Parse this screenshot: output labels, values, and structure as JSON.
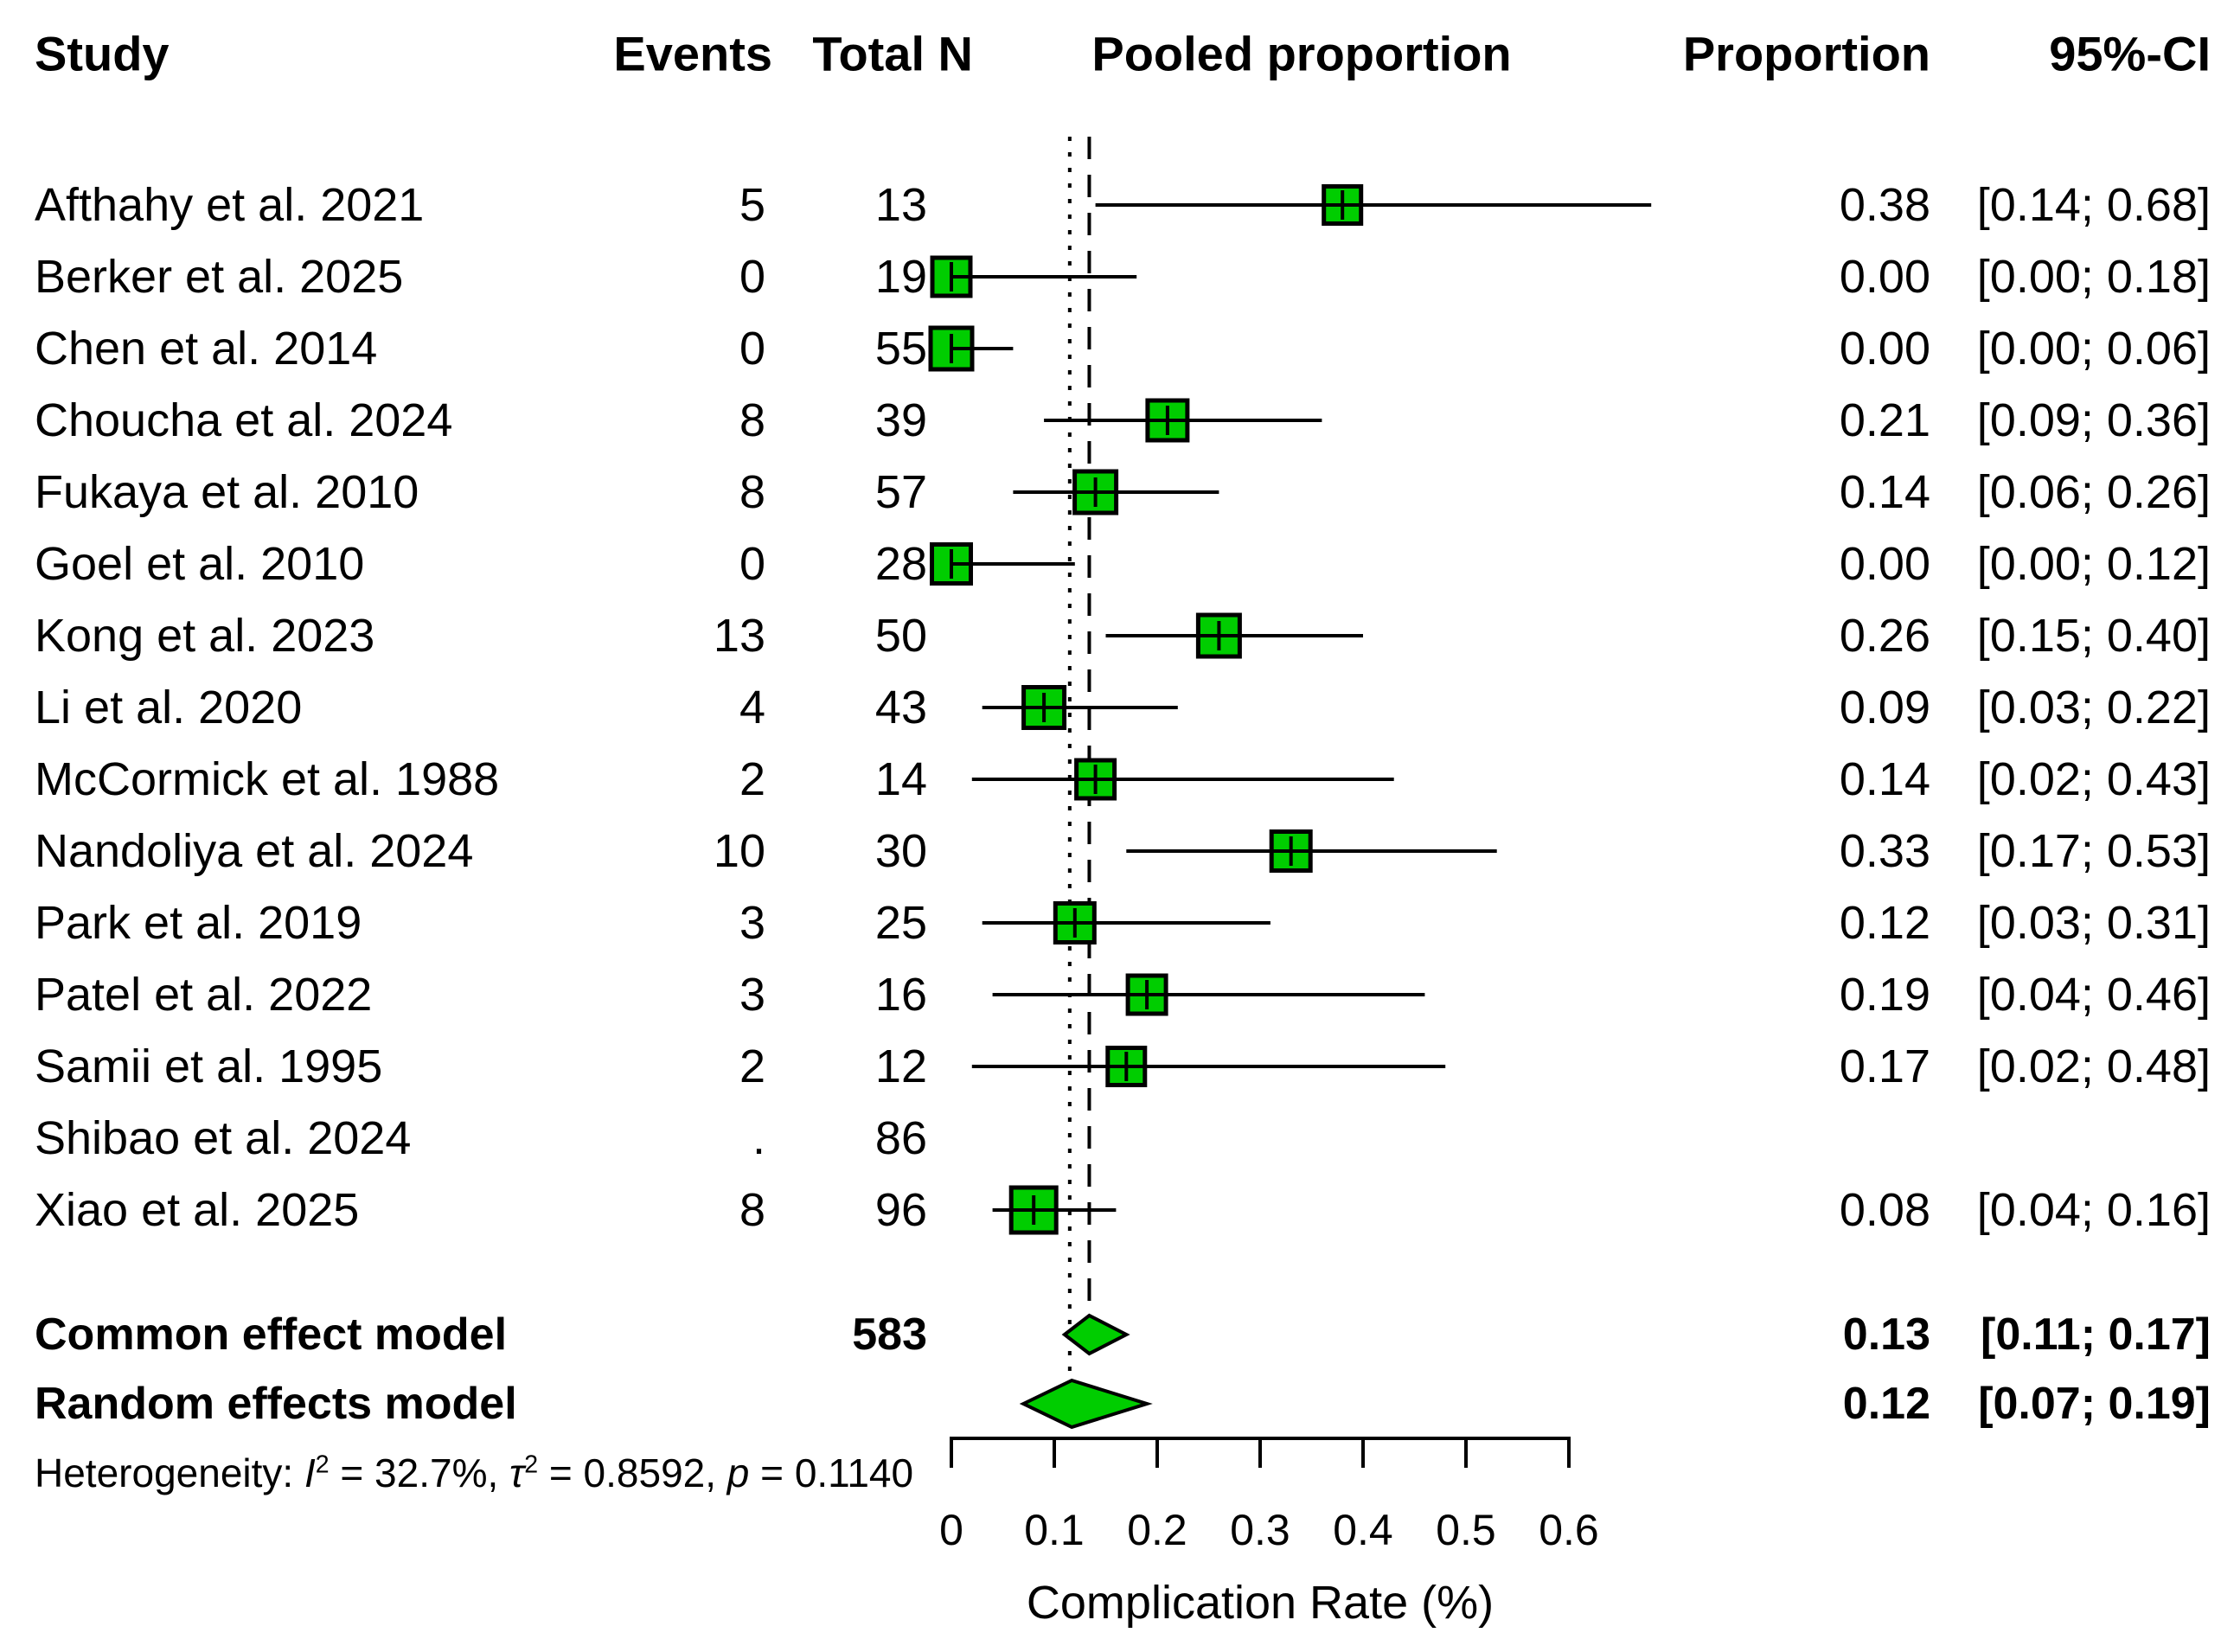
{
  "header": {
    "study": "Study",
    "events": "Events",
    "total_n": "Total N",
    "pooled_proportion": "Pooled proportion",
    "proportion": "Proportion",
    "ci": "95%-CI"
  },
  "summary": {
    "common_label": "Common effect model",
    "common_total_n": "583",
    "common_proportion": "0.13",
    "common_ci": "[0.11; 0.17]",
    "random_label": "Random effects model",
    "random_proportion": "0.12",
    "random_ci": "[0.07; 0.19]"
  },
  "heterogeneity": {
    "prefix": "Heterogeneity: ",
    "i_symbol": "I",
    "i_sup": "2",
    "i_value": " = 32.7%, ",
    "tau_symbol": "τ",
    "tau_sup": "2",
    "tau_value": " = 0.8592, ",
    "p_symbol": "p",
    "p_value": " = 0.1140"
  },
  "colors": {
    "box_fill": "#00CD00",
    "box_border": "#000000",
    "line": "#000000",
    "text": "#000000"
  },
  "chart_data": {
    "type": "forest",
    "xlabel": "Complication Rate (%)",
    "axis": {
      "min": 0,
      "max": 0.6,
      "ticks": [
        0,
        0.1,
        0.2,
        0.3,
        0.4,
        0.5,
        0.6
      ],
      "tick_labels": [
        "0",
        "0.1",
        "0.2",
        "0.3",
        "0.4",
        "0.5",
        "0.6"
      ]
    },
    "studies": [
      {
        "study": "Afthahy et al. 2021",
        "events": "5",
        "total_n": "13",
        "proportion": 0.38,
        "ci_lower": 0.14,
        "ci_upper": 0.68,
        "proportion_text": "0.38",
        "ci_text": "[0.14; 0.68]"
      },
      {
        "study": "Berker et al. 2025",
        "events": "0",
        "total_n": "19",
        "proportion": 0.0,
        "ci_lower": 0.0,
        "ci_upper": 0.18,
        "proportion_text": "0.00",
        "ci_text": "[0.00; 0.18]"
      },
      {
        "study": "Chen et al. 2014",
        "events": "0",
        "total_n": "55",
        "proportion": 0.0,
        "ci_lower": 0.0,
        "ci_upper": 0.06,
        "proportion_text": "0.00",
        "ci_text": "[0.00; 0.06]"
      },
      {
        "study": "Choucha et al. 2024",
        "events": "8",
        "total_n": "39",
        "proportion": 0.21,
        "ci_lower": 0.09,
        "ci_upper": 0.36,
        "proportion_text": "0.21",
        "ci_text": "[0.09; 0.36]"
      },
      {
        "study": "Fukaya et al. 2010",
        "events": "8",
        "total_n": "57",
        "proportion": 0.14,
        "ci_lower": 0.06,
        "ci_upper": 0.26,
        "proportion_text": "0.14",
        "ci_text": "[0.06; 0.26]"
      },
      {
        "study": "Goel et al. 2010",
        "events": "0",
        "total_n": "28",
        "proportion": 0.0,
        "ci_lower": 0.0,
        "ci_upper": 0.12,
        "proportion_text": "0.00",
        "ci_text": "[0.00; 0.12]"
      },
      {
        "study": "Kong et al. 2023",
        "events": "13",
        "total_n": "50",
        "proportion": 0.26,
        "ci_lower": 0.15,
        "ci_upper": 0.4,
        "proportion_text": "0.26",
        "ci_text": "[0.15; 0.40]"
      },
      {
        "study": "Li et al. 2020",
        "events": "4",
        "total_n": "43",
        "proportion": 0.09,
        "ci_lower": 0.03,
        "ci_upper": 0.22,
        "proportion_text": "0.09",
        "ci_text": "[0.03; 0.22]"
      },
      {
        "study": "McCormick et al. 1988",
        "events": "2",
        "total_n": "14",
        "proportion": 0.14,
        "ci_lower": 0.02,
        "ci_upper": 0.43,
        "proportion_text": "0.14",
        "ci_text": "[0.02; 0.43]"
      },
      {
        "study": "Nandoliya et al. 2024",
        "events": "10",
        "total_n": "30",
        "proportion": 0.33,
        "ci_lower": 0.17,
        "ci_upper": 0.53,
        "proportion_text": "0.33",
        "ci_text": "[0.17; 0.53]"
      },
      {
        "study": "Park et al. 2019",
        "events": "3",
        "total_n": "25",
        "proportion": 0.12,
        "ci_lower": 0.03,
        "ci_upper": 0.31,
        "proportion_text": "0.12",
        "ci_text": "[0.03; 0.31]"
      },
      {
        "study": "Patel et al. 2022",
        "events": "3",
        "total_n": "16",
        "proportion": 0.19,
        "ci_lower": 0.04,
        "ci_upper": 0.46,
        "proportion_text": "0.19",
        "ci_text": "[0.04; 0.46]"
      },
      {
        "study": "Samii et al. 1995",
        "events": "2",
        "total_n": "12",
        "proportion": 0.17,
        "ci_lower": 0.02,
        "ci_upper": 0.48,
        "proportion_text": "0.17",
        "ci_text": "[0.02; 0.48]"
      },
      {
        "study": "Shibao et al. 2024",
        "events": ".",
        "total_n": "86",
        "proportion": null,
        "ci_lower": null,
        "ci_upper": null,
        "proportion_text": "",
        "ci_text": ""
      },
      {
        "study": "Xiao et al. 2025",
        "events": "8",
        "total_n": "96",
        "proportion": 0.08,
        "ci_lower": 0.04,
        "ci_upper": 0.16,
        "proportion_text": "0.08",
        "ci_text": "[0.04; 0.16]"
      }
    ],
    "common_effect": {
      "estimate": 0.134,
      "ci_lower": 0.11,
      "ci_upper": 0.17
    },
    "random_effects": {
      "estimate": 0.117,
      "ci_lower": 0.07,
      "ci_upper": 0.19
    },
    "reference_lines": {
      "dotted_at": 0.115,
      "dashed_at": 0.134
    }
  }
}
